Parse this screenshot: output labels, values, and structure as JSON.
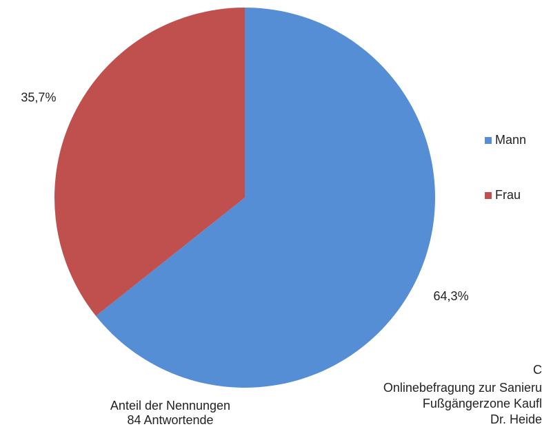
{
  "chart_data": {
    "type": "pie",
    "categories": [
      "Mann",
      "Frau"
    ],
    "values": [
      64.3,
      35.7
    ],
    "value_labels": [
      "64,3%",
      "35,7%"
    ],
    "colors": [
      "#558ed5",
      "#c0504d"
    ],
    "legend": "right",
    "annotations": [
      "Anteil der Nennungen",
      "84 Antwortende"
    ],
    "source": [
      "C",
      "Onlinebefragung zur Sanieru",
      "Fußgängerzone Kaufl",
      "Dr. Heide"
    ]
  }
}
